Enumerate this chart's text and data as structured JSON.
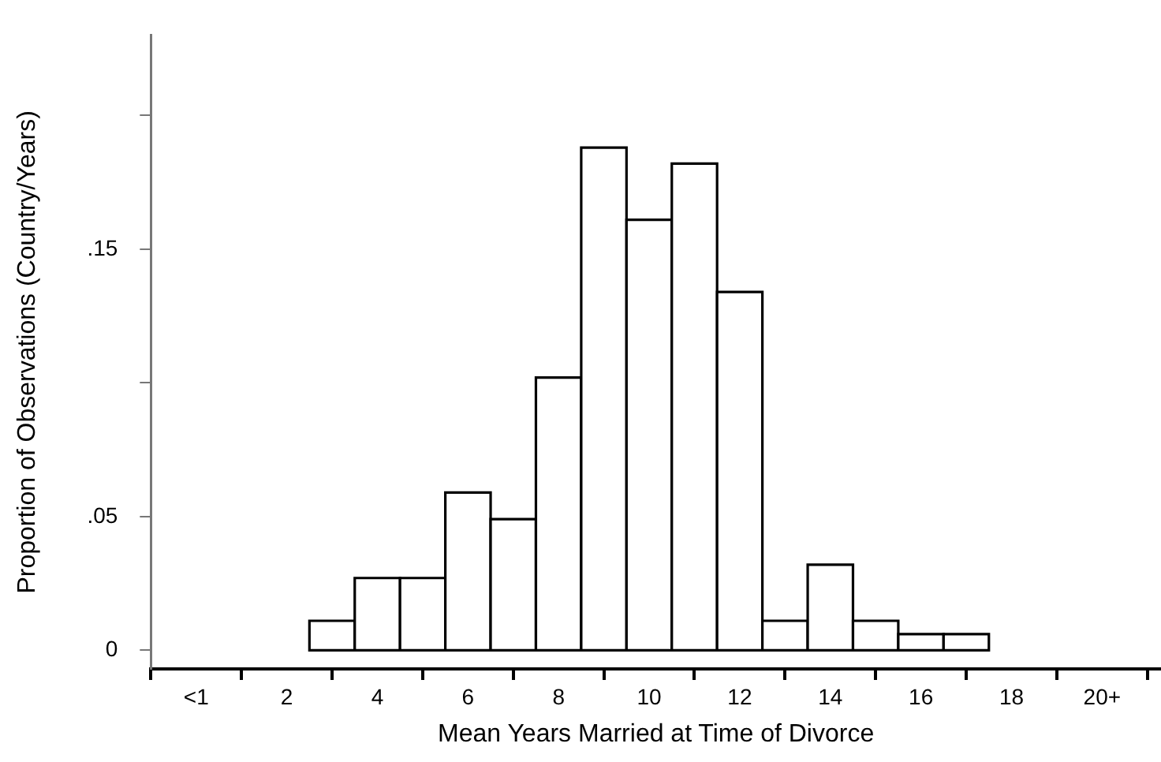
{
  "chart_data": {
    "type": "histogram",
    "xlabel": "Mean Years Married at Time of Divorce",
    "ylabel": "Proportion of Observations (Country/Years)",
    "bins": [
      2.5,
      3.5,
      4.5,
      5.5,
      6.5,
      7.5,
      8.5,
      9.5,
      10.5,
      11.5,
      12.5,
      13.5,
      14.5,
      15.5,
      16.5,
      17.5
    ],
    "values": [
      0.011,
      0.027,
      0.027,
      0.059,
      0.049,
      0.102,
      0.188,
      0.161,
      0.182,
      0.134,
      0.011,
      0.032,
      0.011,
      0.006,
      0.006
    ],
    "color": "#000000",
    "xlim": [
      -1,
      21.3
    ],
    "xticks": [
      {
        "value": 0,
        "label": "<1"
      },
      2,
      4,
      6,
      8,
      10,
      12,
      14,
      16,
      18,
      {
        "value": 20,
        "label": "20+"
      }
    ],
    "ylim": [
      -0.007,
      0.23
    ],
    "yticks": [
      {
        "value": 0,
        "label": "0"
      },
      {
        "value": 0.05,
        "label": ".05"
      },
      {
        "value": 0.1,
        "label": null
      },
      {
        "value": 0.15,
        "label": ".15"
      },
      {
        "value": 0.2,
        "label": null
      }
    ],
    "grid": false
  }
}
